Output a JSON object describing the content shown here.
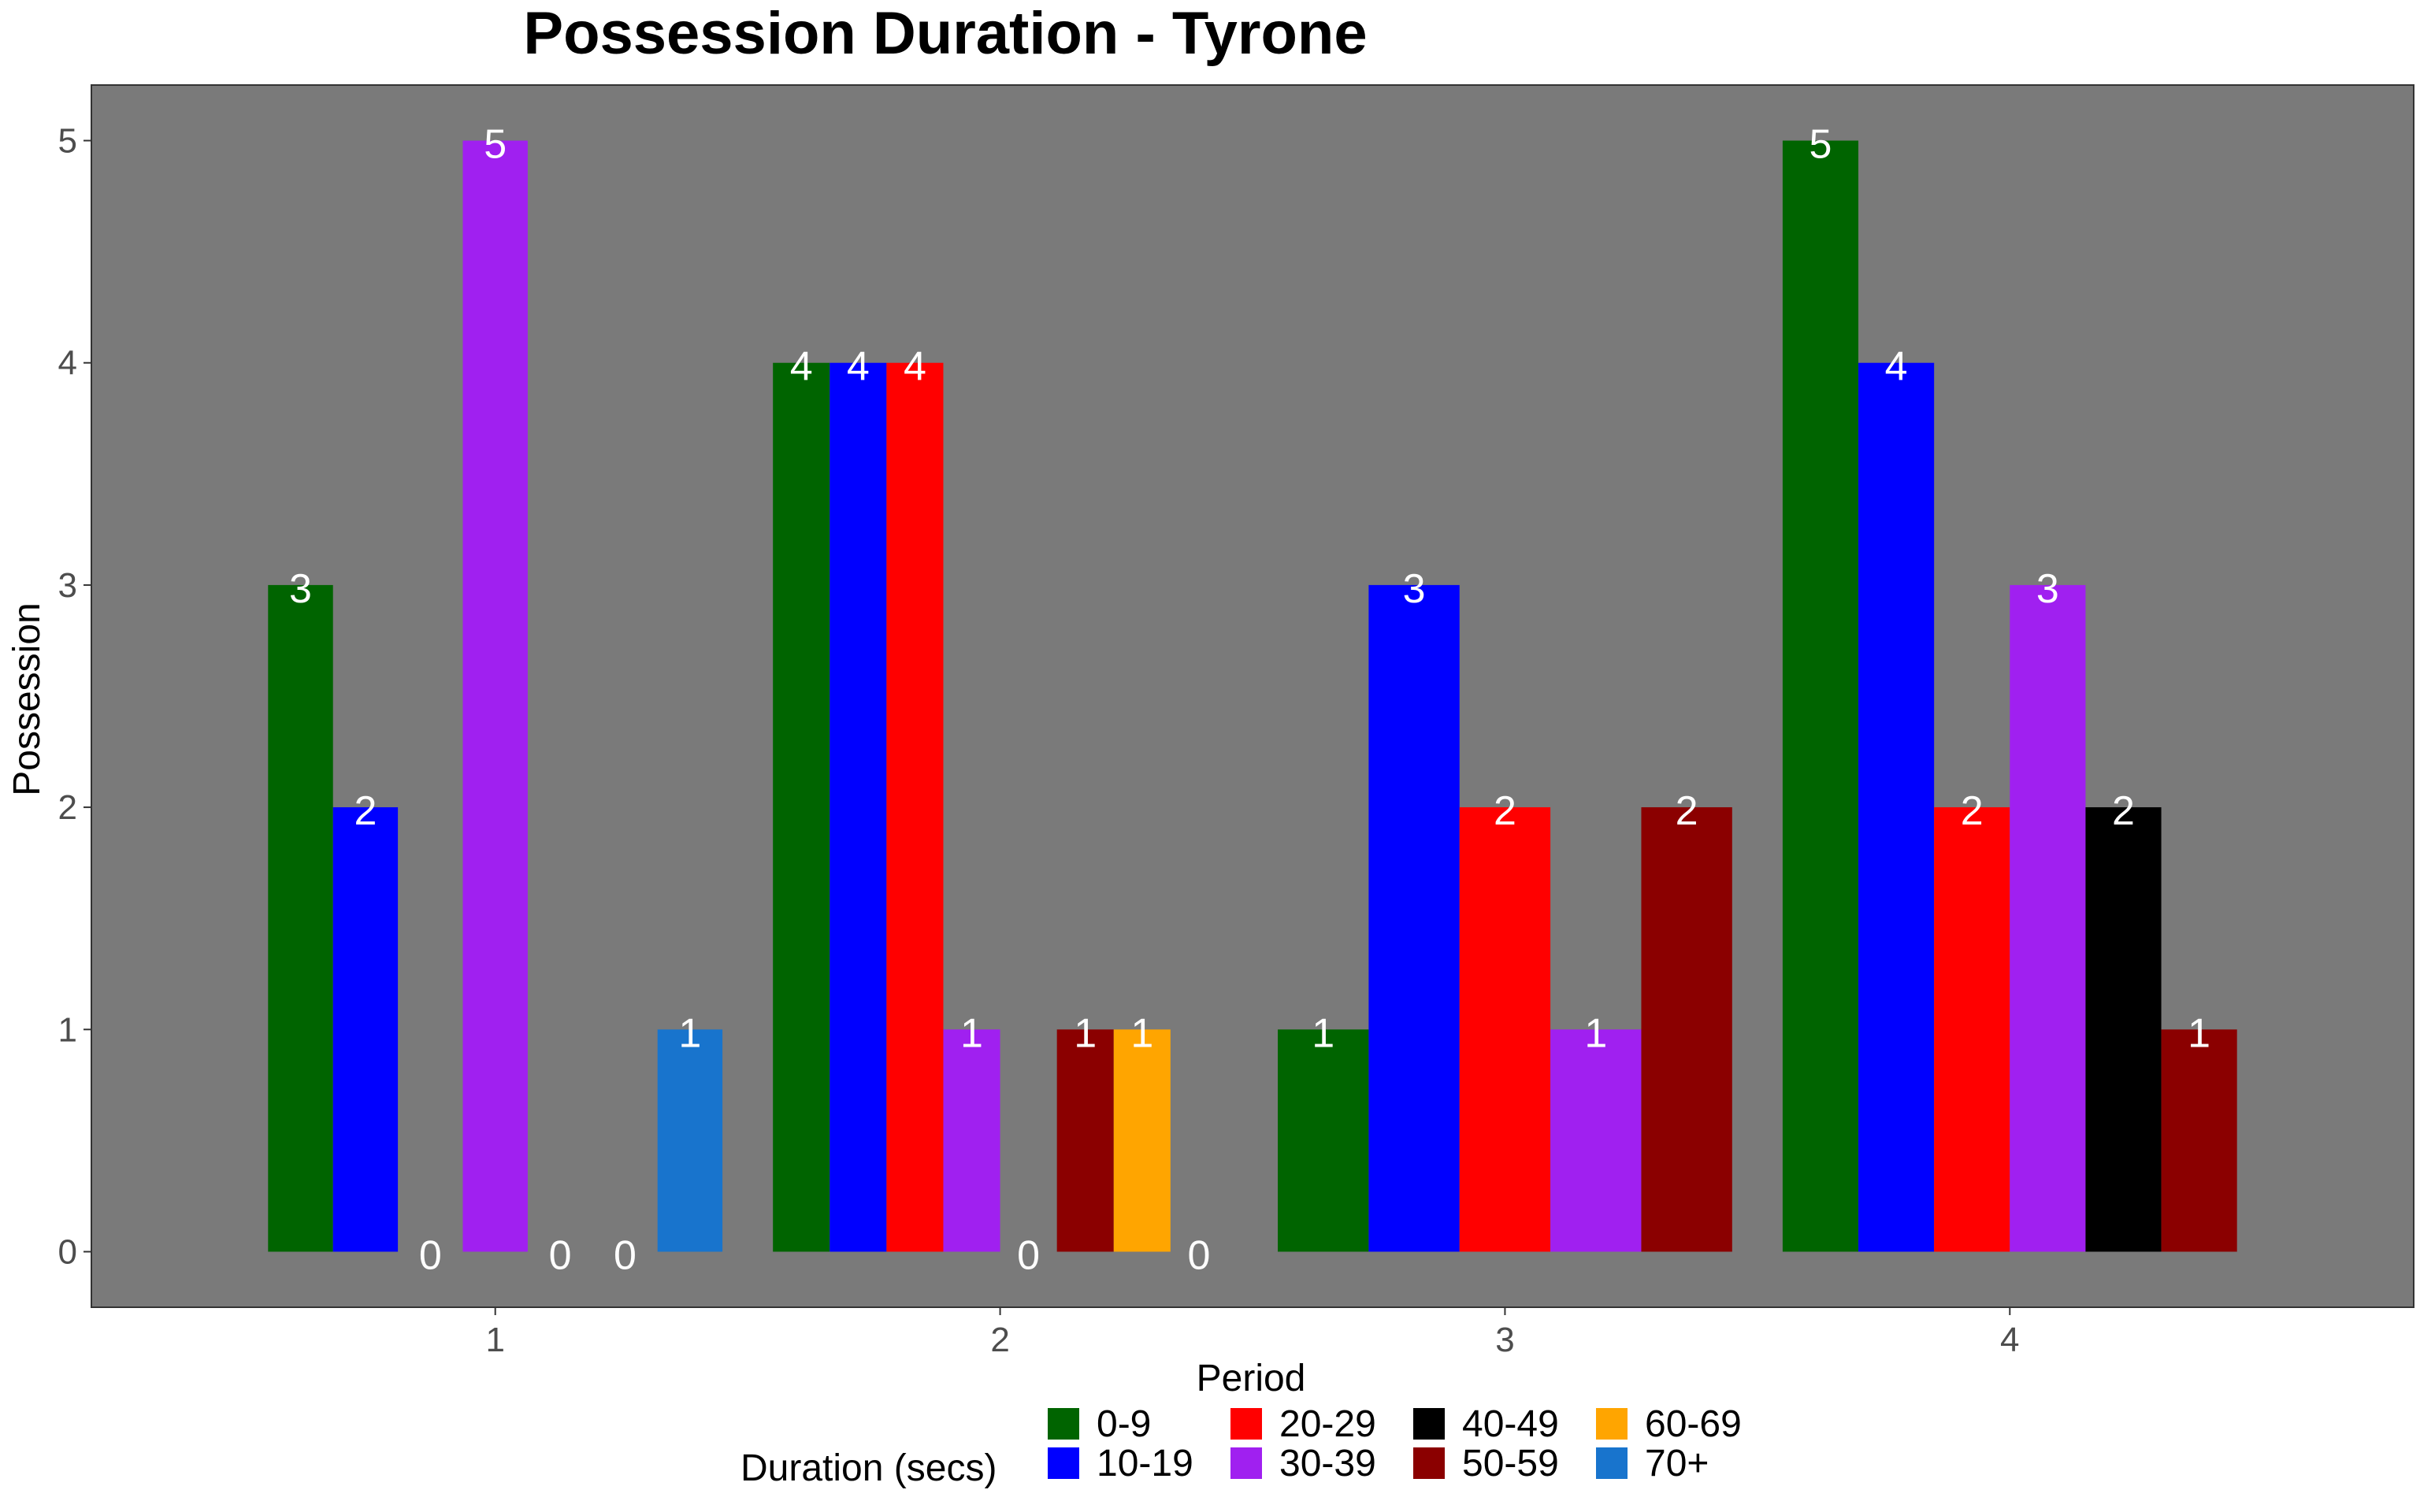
{
  "chart_data": {
    "type": "bar",
    "title": "Possession Duration - Tyrone",
    "xlabel": "Period",
    "ylabel": "Possession",
    "ylim": [
      -0.25,
      5.25
    ],
    "yticks": [
      "0",
      "1",
      "2",
      "3",
      "4",
      "5"
    ],
    "grid": false,
    "legend_position": "bottom",
    "legend_title": "Duration (secs)",
    "panel_background": "#7a7a7a",
    "groups": [
      {
        "period": "1",
        "bars": [
          {
            "series": "0-9",
            "value": 3
          },
          {
            "series": "10-19",
            "value": 2
          },
          {
            "series": "20-29",
            "value": 0
          },
          {
            "series": "30-39",
            "value": 5
          },
          {
            "series": "40-49",
            "value": 0
          },
          {
            "series": "50-59",
            "value": 0
          },
          {
            "series": "70+",
            "value": 1
          }
        ]
      },
      {
        "period": "2",
        "bars": [
          {
            "series": "0-9",
            "value": 4
          },
          {
            "series": "10-19",
            "value": 4
          },
          {
            "series": "20-29",
            "value": 4
          },
          {
            "series": "30-39",
            "value": 1
          },
          {
            "series": "40-49",
            "value": 0
          },
          {
            "series": "50-59",
            "value": 1
          },
          {
            "series": "60-69",
            "value": 1
          },
          {
            "series": "70+",
            "value": 0
          }
        ]
      },
      {
        "period": "3",
        "bars": [
          {
            "series": "0-9",
            "value": 1
          },
          {
            "series": "10-19",
            "value": 3
          },
          {
            "series": "20-29",
            "value": 2
          },
          {
            "series": "30-39",
            "value": 1
          },
          {
            "series": "50-59",
            "value": 2
          }
        ]
      },
      {
        "period": "4",
        "bars": [
          {
            "series": "0-9",
            "value": 5
          },
          {
            "series": "10-19",
            "value": 4
          },
          {
            "series": "20-29",
            "value": 2
          },
          {
            "series": "30-39",
            "value": 3
          },
          {
            "series": "40-49",
            "value": 2
          },
          {
            "series": "50-59",
            "value": 1
          }
        ]
      }
    ],
    "series": [
      {
        "name": "0-9",
        "color": "#006400"
      },
      {
        "name": "10-19",
        "color": "#0000ff"
      },
      {
        "name": "20-29",
        "color": "#ff0000"
      },
      {
        "name": "30-39",
        "color": "#a020f0"
      },
      {
        "name": "40-49",
        "color": "#000000"
      },
      {
        "name": "50-59",
        "color": "#8b0000"
      },
      {
        "name": "60-69",
        "color": "#ffa500"
      },
      {
        "name": "70+",
        "color": "#1874cd"
      }
    ]
  }
}
